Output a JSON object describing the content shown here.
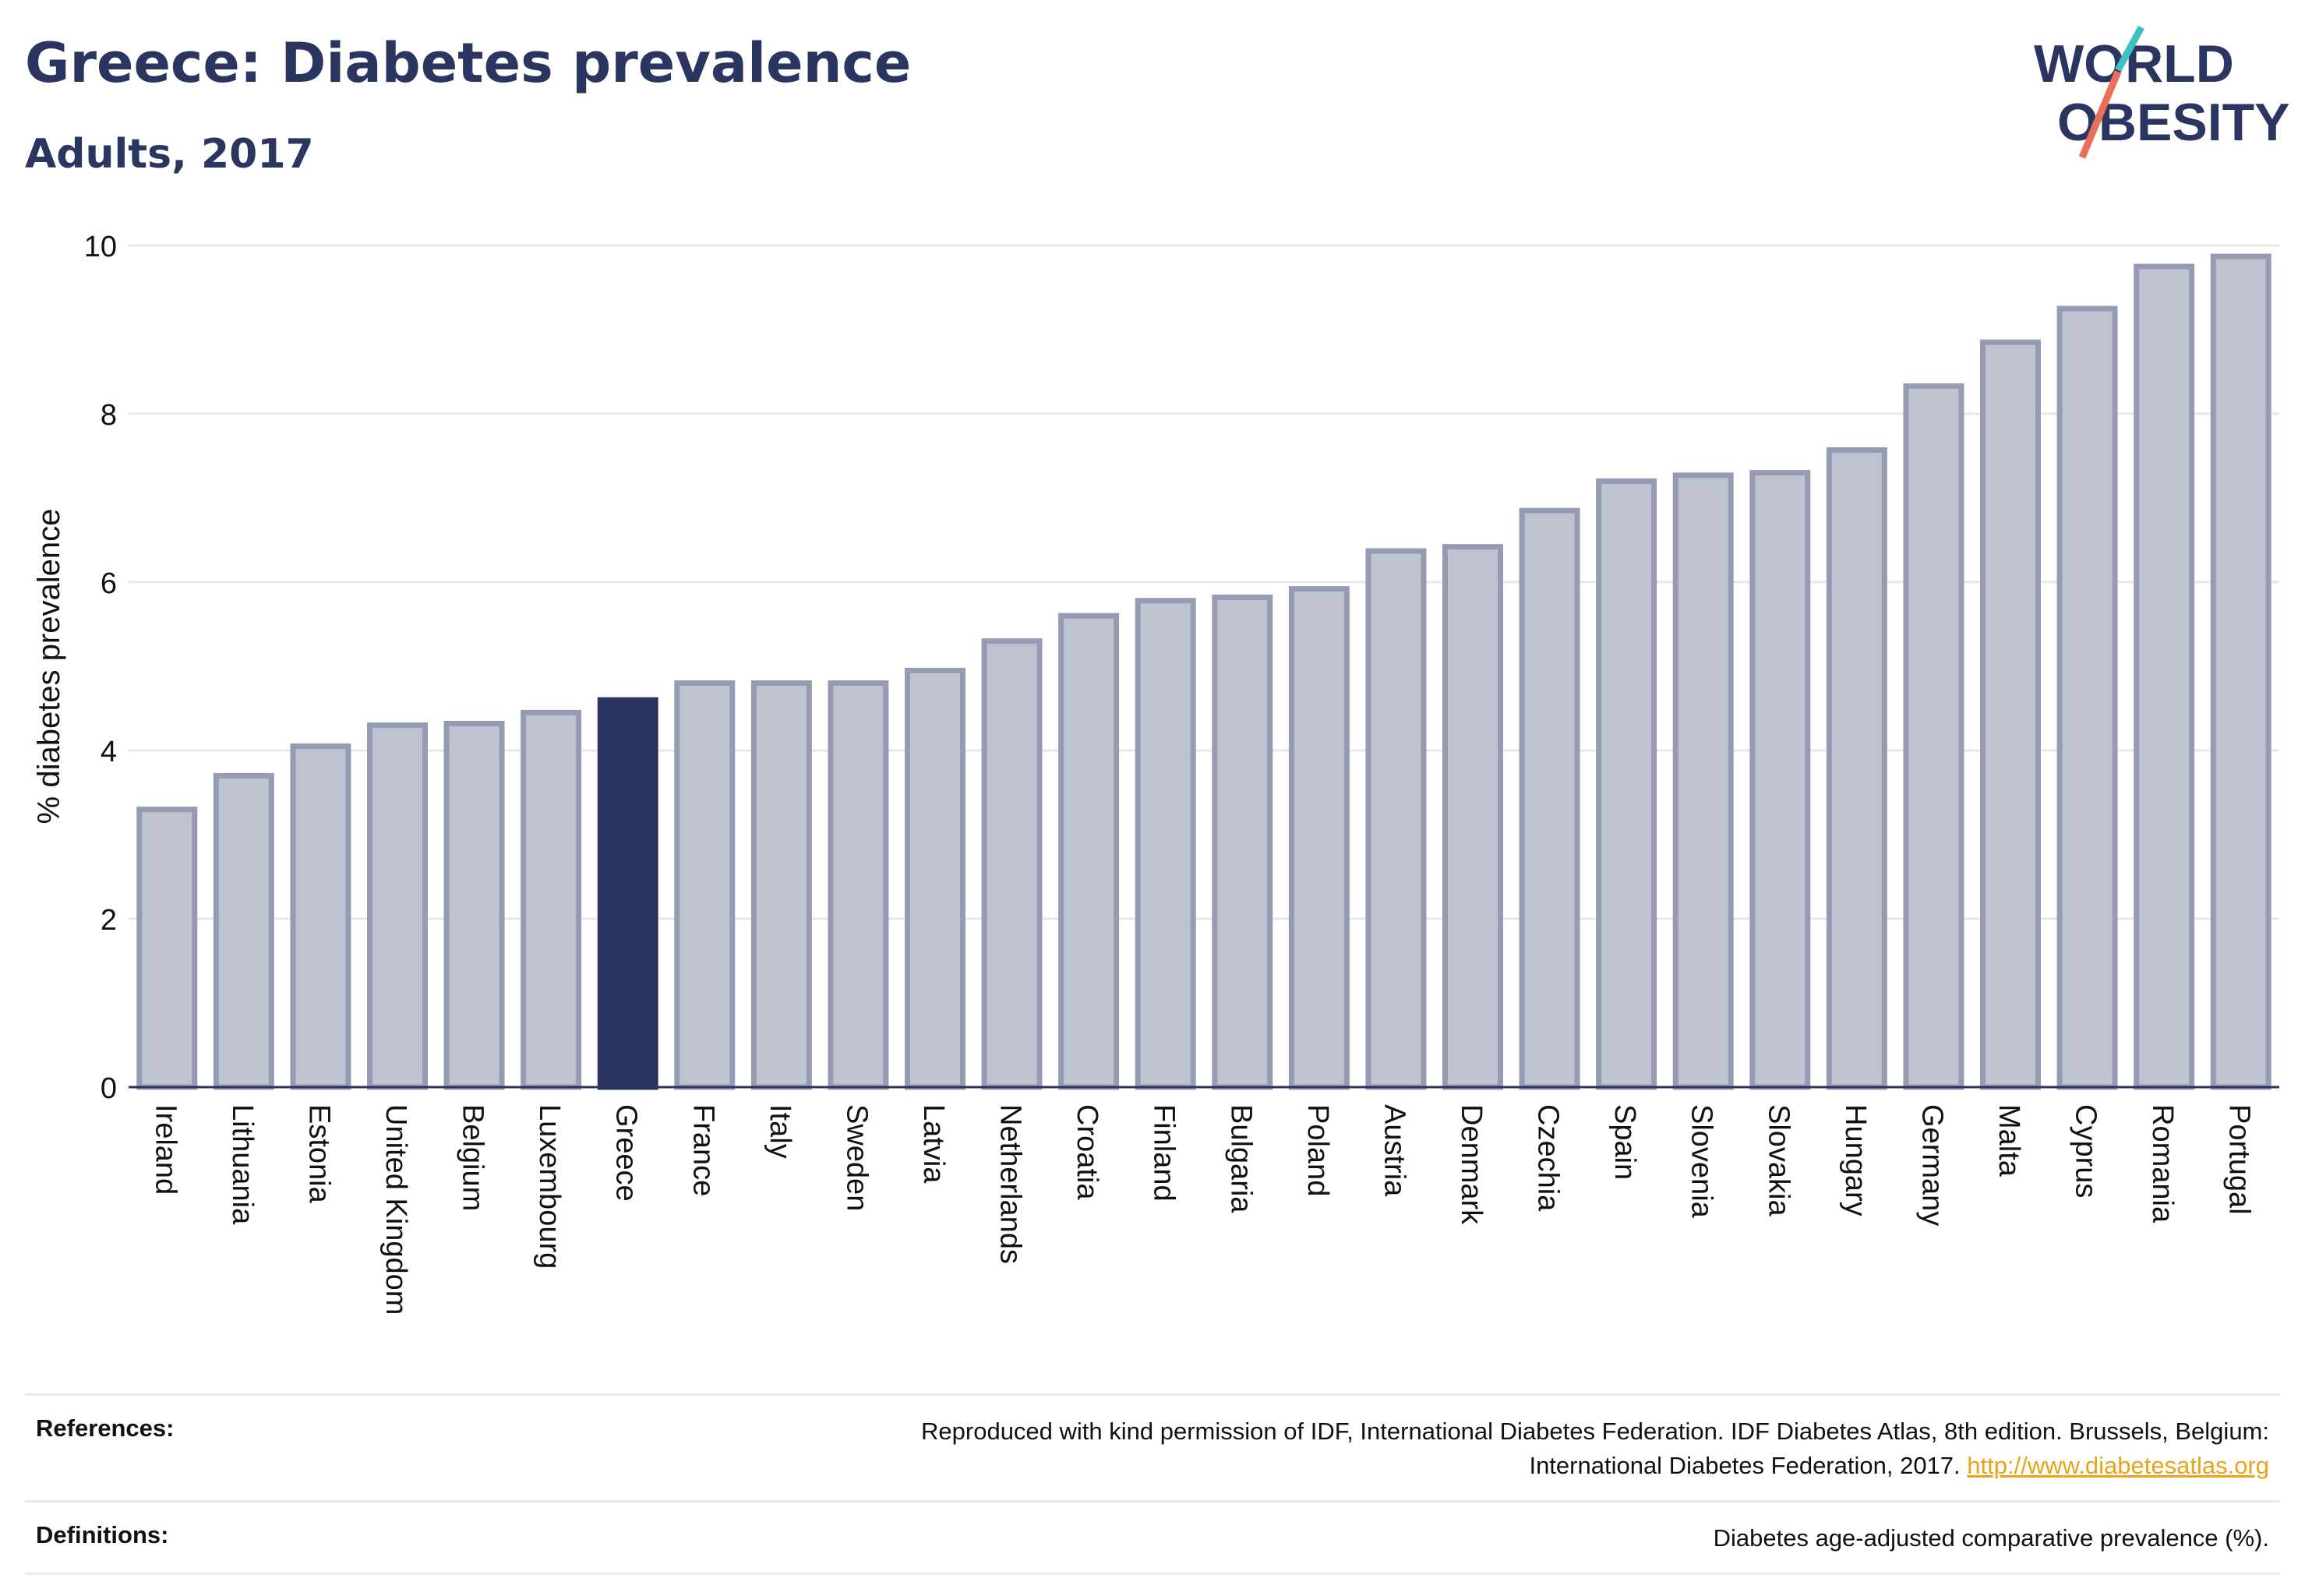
{
  "header": {
    "title": "Greece: Diabetes prevalence",
    "subtitle": "Adults, 2017",
    "logo_line1": "WORLD",
    "logo_line2": "OBESITY"
  },
  "colors": {
    "highlight": "#2a3560",
    "bar_fill": "#bfc3d0",
    "bar_stroke": "#959bb3",
    "logo_teal": "#3fbfbf",
    "logo_coral": "#e8705a",
    "link": "#e8a317"
  },
  "chart_data": {
    "type": "bar",
    "title": "Greece: Diabetes prevalence",
    "subtitle": "Adults, 2017",
    "xlabel": "",
    "ylabel": "% diabetes prevalence",
    "ylim": [
      0,
      10
    ],
    "yticks": [
      0,
      2,
      4,
      6,
      8,
      10
    ],
    "grid": true,
    "highlight": "Greece",
    "categories": [
      "Ireland",
      "Lithuania",
      "Estonia",
      "United Kingdom",
      "Belgium",
      "Luxembourg",
      "Greece",
      "France",
      "Italy",
      "Sweden",
      "Latvia",
      "Netherlands",
      "Croatia",
      "Finland",
      "Bulgaria",
      "Poland",
      "Austria",
      "Denmark",
      "Czechia",
      "Spain",
      "Slovenia",
      "Slovakia",
      "Hungary",
      "Germany",
      "Malta",
      "Cyprus",
      "Romania",
      "Portugal"
    ],
    "values": [
      3.3,
      3.7,
      4.05,
      4.3,
      4.32,
      4.45,
      4.6,
      4.8,
      4.8,
      4.8,
      4.95,
      5.3,
      5.6,
      5.78,
      5.82,
      5.92,
      6.37,
      6.42,
      6.85,
      7.2,
      7.27,
      7.3,
      7.57,
      8.33,
      8.85,
      9.25,
      9.75,
      9.87
    ]
  },
  "footer": {
    "references_label": "References:",
    "references_text_line1": "Reproduced with kind permission of IDF, International Diabetes Federation. IDF Diabetes Atlas, 8th edition. Brussels, Belgium:",
    "references_text_line2": "International Diabetes Federation, 2017.",
    "references_link": "http://www.diabetesatlas.org",
    "definitions_label": "Definitions:",
    "definitions_text": "Diabetes age-adjusted comparative prevalence (%)."
  }
}
